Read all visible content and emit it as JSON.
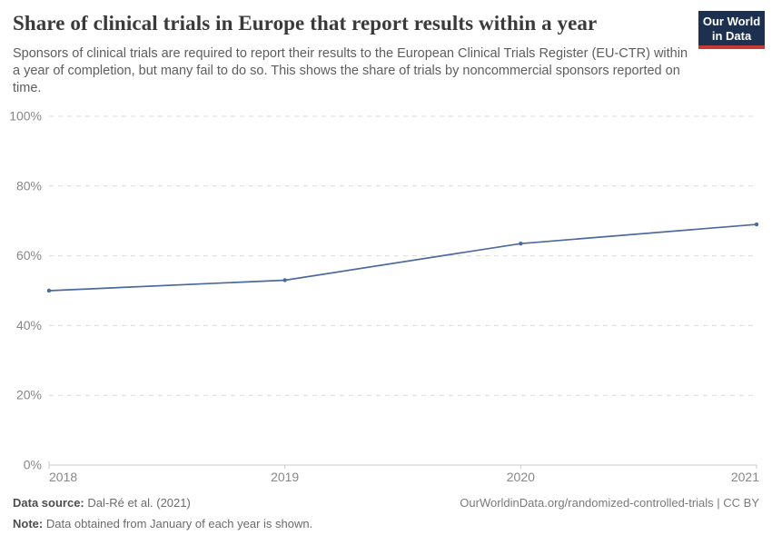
{
  "header": {
    "title": "Share of clinical trials in Europe that report results within a year",
    "subtitle": "Sponsors of clinical trials are required to report their results to the European Clinical Trials Register (EU-CTR) within a year of completion, but many fail to do so. This shows the share of trials by noncommercial sponsors reported on time.",
    "logo": {
      "line1": "Our World",
      "line2": "in Data",
      "bg_color": "#1d3050",
      "accent_color": "#c43b33"
    }
  },
  "chart_data": {
    "type": "line",
    "title": "Share of clinical trials in Europe that report results within a year",
    "x": [
      2018,
      2019,
      2020,
      2021
    ],
    "xtick_labels": [
      "2018",
      "2019",
      "2020",
      "2021"
    ],
    "series": [
      {
        "values": [
          50,
          53,
          63.5,
          69
        ],
        "color": "#4c6a9c"
      }
    ],
    "ylim": [
      0,
      100
    ],
    "yticks": [
      0,
      20,
      40,
      60,
      80,
      100
    ],
    "ytick_labels": [
      "0%",
      "20%",
      "40%",
      "60%",
      "80%",
      "100%"
    ],
    "grid": "horizontal-dashed",
    "legend": "none",
    "axis_color": "#c8c8c8",
    "grid_color": "#dcdcdc"
  },
  "footer": {
    "source_label": "Data source:",
    "source_value": "Dal-Ré et al. (2021)",
    "note_label": "Note:",
    "note_value": "Data obtained from January of each year is shown.",
    "link": "OurWorldinData.org/randomized-controlled-trials | CC BY"
  }
}
